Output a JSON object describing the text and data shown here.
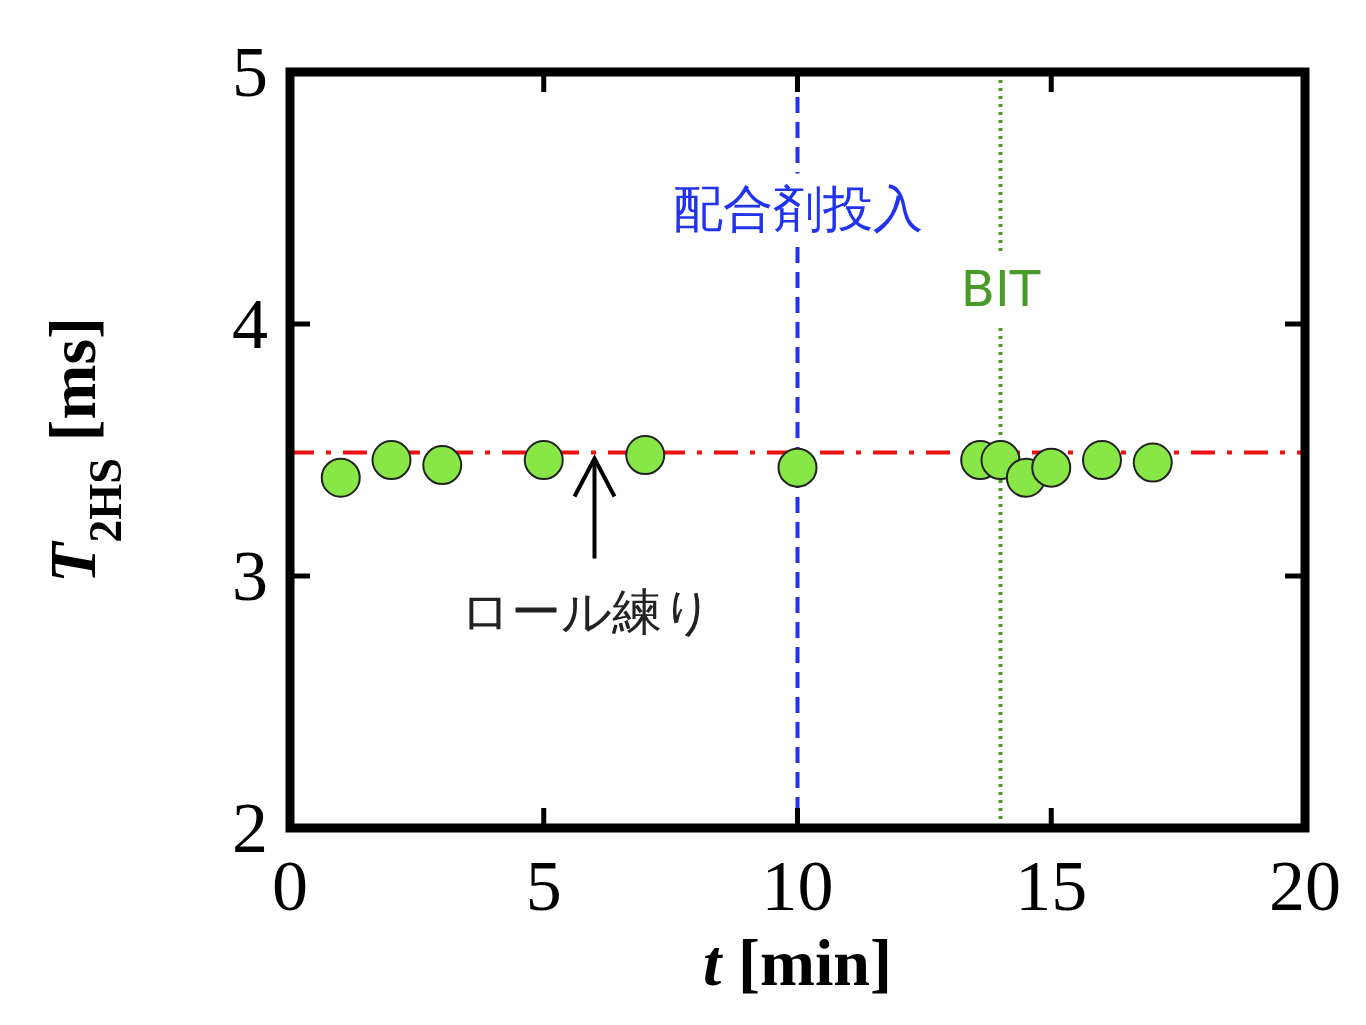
{
  "chart_data": {
    "type": "scatter",
    "xlabel": "*t* [min]",
    "ylabel": "*T*$_{2HS}$ [ms]",
    "x": [
      1,
      2,
      3,
      5,
      7,
      10,
      13.6,
      14,
      14.5,
      15,
      16,
      17
    ],
    "values": [
      3.39,
      3.46,
      3.44,
      3.46,
      3.48,
      3.43,
      3.46,
      3.46,
      3.39,
      3.43,
      3.46,
      3.45
    ],
    "color": "#88e646",
    "marker": "circle",
    "grid": false,
    "xlim": [
      0,
      20
    ],
    "xticks": [
      0,
      5,
      10,
      15,
      20
    ],
    "ylim": [
      2,
      5
    ],
    "yticks": [
      2,
      3,
      4,
      5
    ],
    "ref_lines": [
      {
        "axis": "y",
        "value": 3.49,
        "color": "#ee1111",
        "line_style": "dashdot"
      },
      {
        "axis": "x",
        "value": 10,
        "label": "配合剤投入",
        "color": "#2233ee",
        "line_style": "dashed"
      },
      {
        "axis": "x",
        "value": 14,
        "label": "BIT",
        "color": "#4a9a2a",
        "line_style": "dotted"
      }
    ],
    "annotations": [
      {
        "text": "ロール練り",
        "x": 6,
        "y": 3.49
      }
    ]
  }
}
